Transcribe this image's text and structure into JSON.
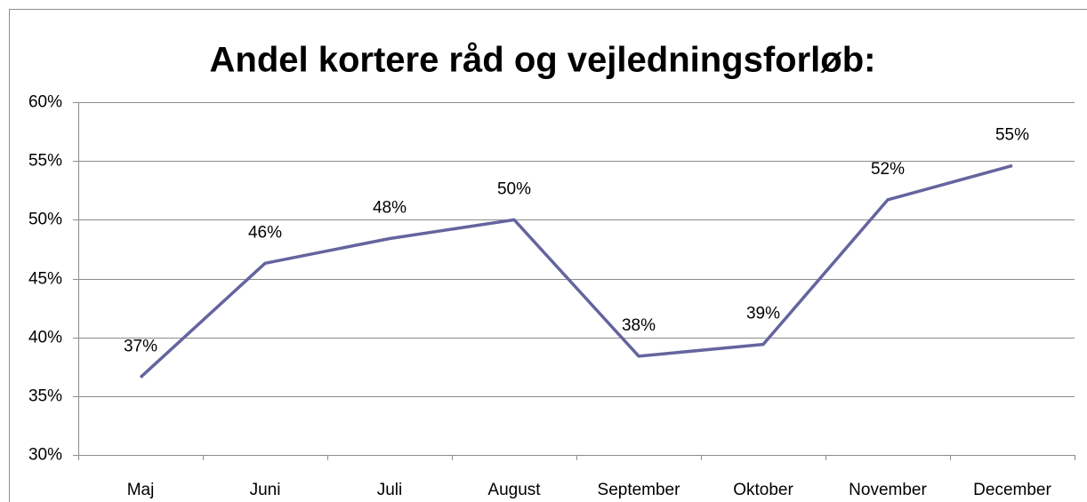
{
  "chart_data": {
    "type": "line",
    "title": "Andel kortere råd og vejledningsforløb:",
    "categories": [
      "Maj",
      "Juni",
      "Juli",
      "August",
      "September",
      "Oktober",
      "November",
      "December"
    ],
    "series": [
      {
        "name": "Andel",
        "color": "#64649e",
        "values": [
          36.6,
          46.3,
          48.4,
          50.0,
          38.4,
          39.4,
          51.7,
          54.6
        ],
        "value_labels": [
          "37%",
          "46%",
          "48%",
          "50%",
          "38%",
          "39%",
          "52%",
          "55%"
        ]
      }
    ],
    "ylim": [
      30,
      60
    ],
    "yticks": [
      {
        "value": 30,
        "label": "30%"
      },
      {
        "value": 35,
        "label": "35%"
      },
      {
        "value": 40,
        "label": "40%"
      },
      {
        "value": 45,
        "label": "45%"
      },
      {
        "value": 50,
        "label": "50%"
      },
      {
        "value": 55,
        "label": "55%"
      },
      {
        "value": 60,
        "label": "60%"
      }
    ],
    "grid": true
  }
}
